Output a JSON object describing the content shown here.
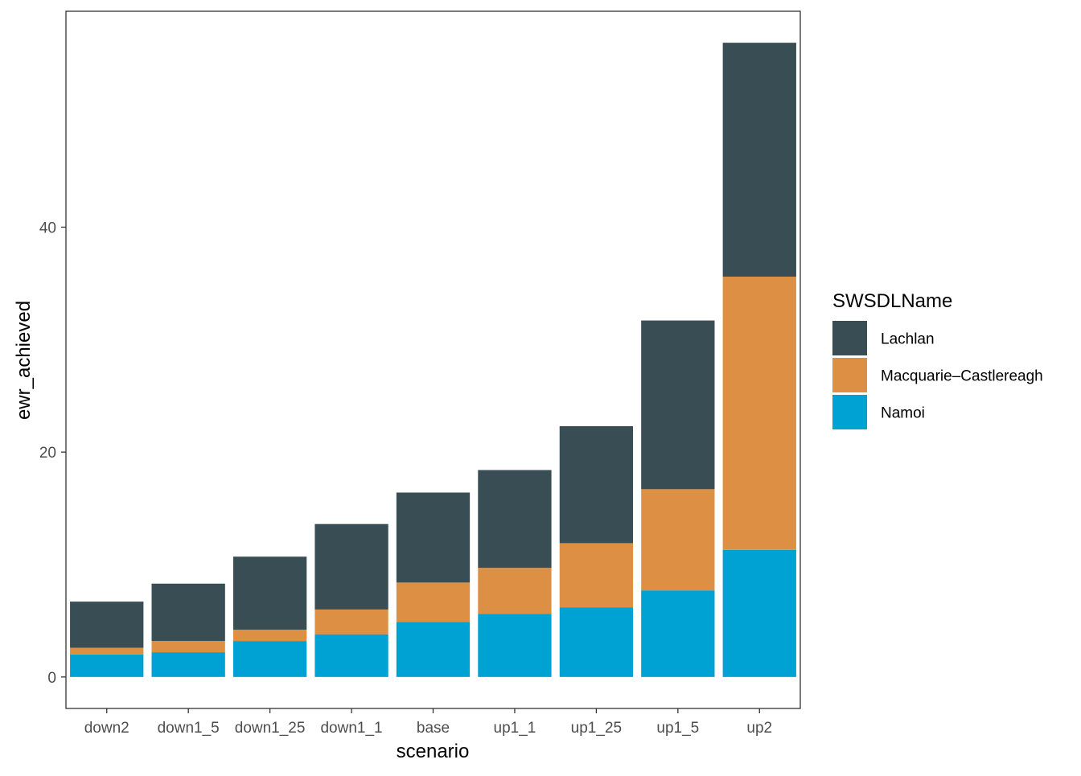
{
  "chart_data": {
    "type": "bar",
    "stacked": true,
    "categories": [
      "down2",
      "down1_5",
      "down1_25",
      "down1_1",
      "base",
      "up1_1",
      "up1_25",
      "up1_5",
      "up2"
    ],
    "series": [
      {
        "name": "Namoi",
        "color": "#00a2d3",
        "values": [
          2.0,
          2.2,
          3.2,
          3.8,
          4.9,
          5.6,
          6.2,
          7.7,
          11.3
        ]
      },
      {
        "name": "Macquarie–Castlereagh",
        "color": "#dd9044",
        "values": [
          0.6,
          1.0,
          1.0,
          2.2,
          3.5,
          4.1,
          5.7,
          9.0,
          24.3
        ]
      },
      {
        "name": "Lachlan",
        "color": "#384d54",
        "values": [
          4.1,
          5.1,
          6.5,
          7.6,
          8.0,
          8.7,
          10.4,
          15.0,
          20.8
        ]
      }
    ],
    "xlabel": "scenario",
    "ylabel": "ewr_achieved",
    "ylim": [
      -2.8,
      59.2
    ],
    "yticks": [
      0,
      20,
      40
    ],
    "grid": false,
    "legend": {
      "title": "SWSDLName",
      "placement": "right",
      "order": [
        "Lachlan",
        "Macquarie–Castlereagh",
        "Namoi"
      ]
    }
  }
}
